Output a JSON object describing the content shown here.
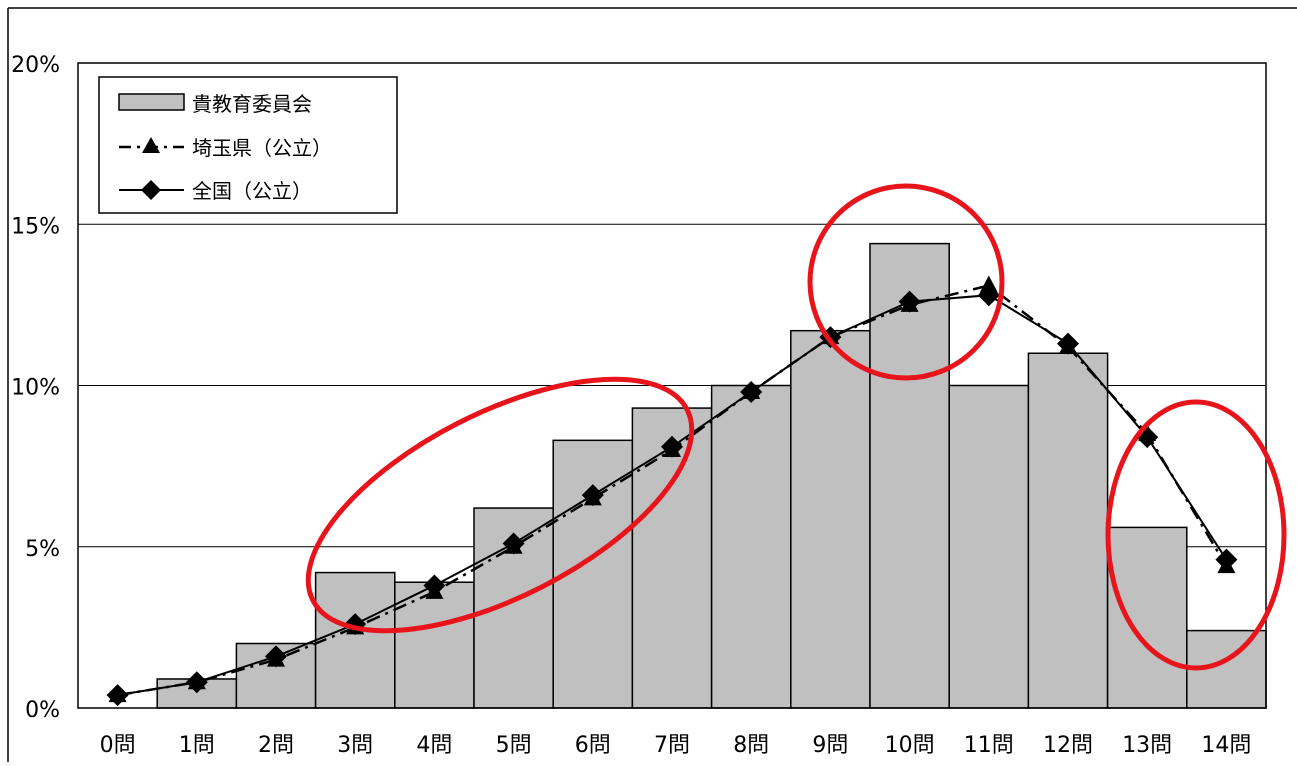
{
  "chart_data": {
    "type": "bar",
    "title": "",
    "xlabel": "",
    "ylabel": "",
    "categories": [
      "0問",
      "1問",
      "2問",
      "3問",
      "4問",
      "5問",
      "6問",
      "7問",
      "8問",
      "9問",
      "10問",
      "11問",
      "12問",
      "13問",
      "14問"
    ],
    "ylim": [
      0,
      20
    ],
    "yticks": [
      "0%",
      "5%",
      "10%",
      "15%",
      "20%"
    ],
    "grid": true,
    "legend_position": "top-left",
    "series": [
      {
        "name": "貴教育委員会",
        "type": "bar",
        "color": "#c0c0c0",
        "values": [
          0,
          0.9,
          2.0,
          4.2,
          3.9,
          6.2,
          8.3,
          9.3,
          10.0,
          11.7,
          14.4,
          10.0,
          11.0,
          5.6,
          2.4
        ]
      },
      {
        "name": "埼玉県（公立）",
        "type": "line",
        "style": "dash-dot",
        "marker": "triangle",
        "color": "#000000",
        "values": [
          0.4,
          0.8,
          1.5,
          2.5,
          3.6,
          5.0,
          6.5,
          8.0,
          9.8,
          11.5,
          12.5,
          13.1,
          11.2,
          8.5,
          4.4
        ]
      },
      {
        "name": "全国（公立）",
        "type": "line",
        "style": "solid",
        "marker": "diamond",
        "color": "#000000",
        "values": [
          0.4,
          0.8,
          1.6,
          2.6,
          3.8,
          5.1,
          6.6,
          8.1,
          9.8,
          11.5,
          12.6,
          12.8,
          11.3,
          8.4,
          4.6
        ]
      }
    ],
    "annotations": [
      {
        "shape": "ellipse",
        "color": "#e8141c",
        "around_categories": [
          "3問",
          "7問"
        ]
      },
      {
        "shape": "ellipse",
        "color": "#e8141c",
        "around_categories": [
          "10問",
          "11問"
        ]
      },
      {
        "shape": "ellipse",
        "color": "#e8141c",
        "around_categories": [
          "13問",
          "14問"
        ]
      }
    ]
  }
}
